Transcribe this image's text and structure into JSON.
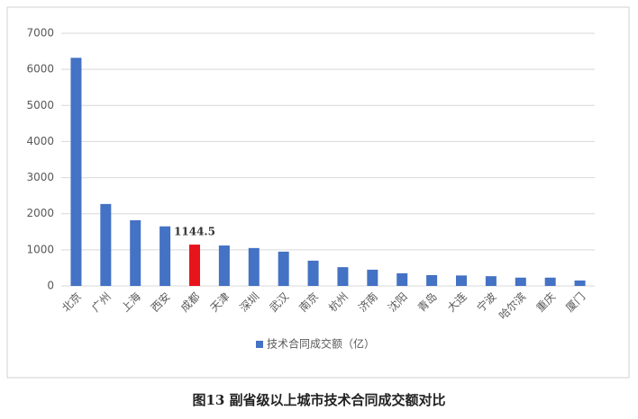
{
  "chart_data": {
    "type": "bar",
    "caption": "图13 副省级以上城市技术合同成交额对比",
    "categories": [
      "北京",
      "广州",
      "上海",
      "西安",
      "成都",
      "天津",
      "深圳",
      "武汉",
      "南京",
      "杭州",
      "济南",
      "沈阳",
      "青岛",
      "大连",
      "宁波",
      "哈尔滨",
      "重庆",
      "厦门"
    ],
    "series": [
      {
        "name": "技术合同成交额（亿）",
        "color": "#4472c4",
        "values": [
          6320,
          2270,
          1820,
          1650,
          1144.5,
          1120,
          1050,
          950,
          700,
          520,
          450,
          350,
          300,
          290,
          270,
          230,
          230,
          150
        ],
        "colors": [
          "#4472c4",
          "#4472c4",
          "#4472c4",
          "#4472c4",
          "#e8141b",
          "#4472c4",
          "#4472c4",
          "#4472c4",
          "#4472c4",
          "#4472c4",
          "#4472c4",
          "#4472c4",
          "#4472c4",
          "#4472c4",
          "#4472c4",
          "#4472c4",
          "#4472c4",
          "#4472c4"
        ],
        "value_labels": [
          null,
          null,
          null,
          null,
          "1144.5",
          null,
          null,
          null,
          null,
          null,
          null,
          null,
          null,
          null,
          null,
          null,
          null,
          null
        ]
      }
    ],
    "ylim": [
      0,
      7000
    ],
    "yticks": [
      0,
      1000,
      2000,
      3000,
      4000,
      5000,
      6000,
      7000
    ],
    "grid": true,
    "legend": "bottom"
  }
}
